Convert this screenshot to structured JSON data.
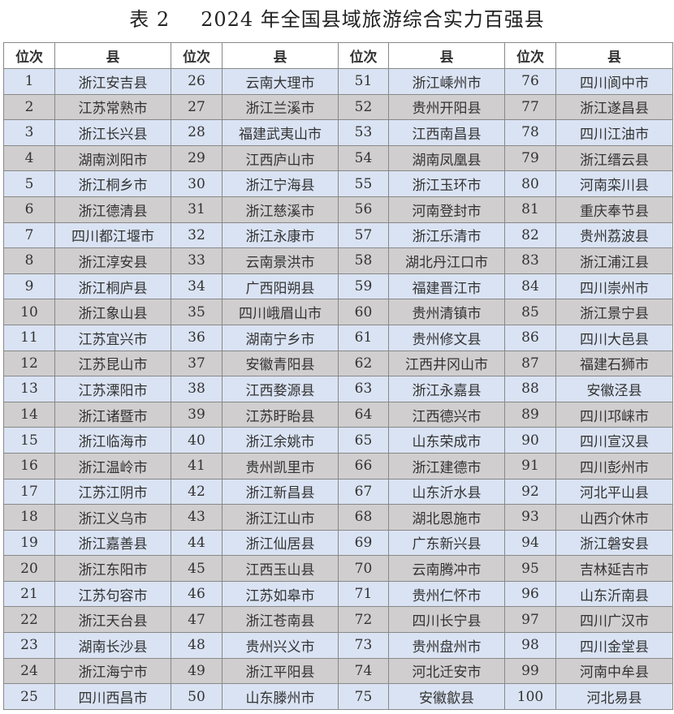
{
  "title": {
    "label": "表 2",
    "text": "2024 年全国县域旅游综合实力百强县"
  },
  "headers": [
    "位次",
    "县",
    "位次",
    "县",
    "位次",
    "县",
    "位次",
    "县"
  ],
  "colors": {
    "odd_row": "#dae3f3",
    "even_row": "#d0cece"
  },
  "counties": [
    "浙江安吉县",
    "江苏常熟市",
    "浙江长兴县",
    "湖南浏阳市",
    "浙江桐乡市",
    "浙江德清县",
    "四川都江堰市",
    "浙江淳安县",
    "浙江桐庐县",
    "浙江象山县",
    "江苏宜兴市",
    "江苏昆山市",
    "江苏溧阳市",
    "浙江诸暨市",
    "浙江临海市",
    "浙江温岭市",
    "江苏江阴市",
    "浙江义乌市",
    "浙江嘉善县",
    "浙江东阳市",
    "江苏句容市",
    "浙江天台县",
    "湖南长沙县",
    "浙江海宁市",
    "四川西昌市",
    "云南大理市",
    "浙江兰溪市",
    "福建武夷山市",
    "江西庐山市",
    "浙江宁海县",
    "浙江慈溪市",
    "浙江永康市",
    "云南景洪市",
    "广西阳朔县",
    "四川峨眉山市",
    "湖南宁乡市",
    "安徽青阳县",
    "江西婺源县",
    "江苏盱眙县",
    "浙江余姚市",
    "贵州凯里市",
    "浙江新昌县",
    "浙江江山市",
    "浙江仙居县",
    "江西玉山县",
    "江苏如皋市",
    "浙江苍南县",
    "贵州兴义市",
    "浙江平阳县",
    "山东滕州市",
    "浙江嵊州市",
    "贵州开阳县",
    "江西南昌县",
    "湖南凤凰县",
    "浙江玉环市",
    "河南登封市",
    "浙江乐清市",
    "湖北丹江口市",
    "福建晋江市",
    "贵州清镇市",
    "贵州修文县",
    "江西井冈山市",
    "浙江永嘉县",
    "江西德兴市",
    "山东荣成市",
    "浙江建德市",
    "山东沂水县",
    "湖北恩施市",
    "广东新兴县",
    "云南腾冲市",
    "贵州仁怀市",
    "四川长宁县",
    "贵州盘州市",
    "河北迁安市",
    "安徽歙县",
    "四川阆中市",
    "浙江遂昌县",
    "四川江油市",
    "浙江缙云县",
    "河南栾川县",
    "重庆奉节县",
    "贵州荔波县",
    "浙江浦江县",
    "四川崇州市",
    "浙江景宁县",
    "四川大邑县",
    "福建石狮市",
    "安徽泾县",
    "四川邛崃市",
    "四川宣汉县",
    "四川彭州市",
    "河北平山县",
    "山西介休市",
    "浙江磐安县",
    "吉林延吉市",
    "山东沂南县",
    "四川广汉市",
    "四川金堂县",
    "河南中牟县",
    "河北易县"
  ]
}
